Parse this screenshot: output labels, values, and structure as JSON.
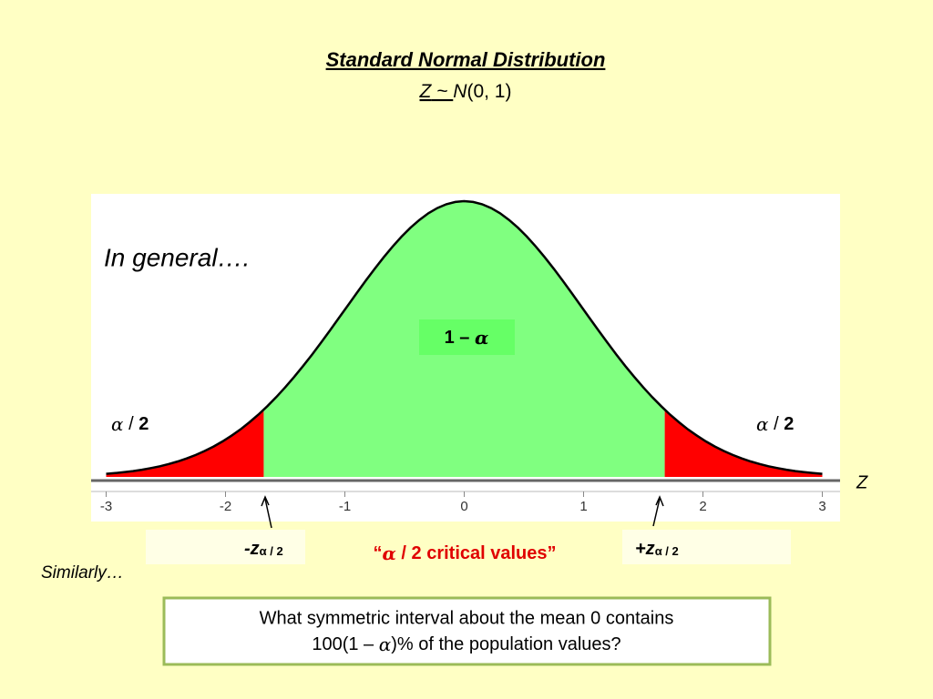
{
  "header": {
    "title": "Standard Normal Distribution",
    "subtitle": [
      "Z",
      " ~ ",
      "N",
      "(0, 1)"
    ]
  },
  "figure": {
    "note": "In general….",
    "center_label": [
      "1 – ",
      "α"
    ],
    "left_tail": [
      "α",
      " / ",
      "2"
    ],
    "right_tail": [
      "α",
      " / ",
      "2"
    ],
    "axis_label": "Z",
    "axis_ticks": [
      -3,
      -2,
      -1,
      0,
      1,
      2,
      3
    ]
  },
  "critical": {
    "left": [
      "-z",
      "α / 2"
    ],
    "caption": [
      "“",
      "α",
      " / 2 critical values”"
    ],
    "right": [
      "+z",
      "α / 2"
    ]
  },
  "similarly": "Similarly…",
  "question": {
    "line1": "What symmetric interval about the mean 0 contains",
    "line2": [
      "100(1 – ",
      "α",
      ")% of the population values?"
    ]
  }
}
